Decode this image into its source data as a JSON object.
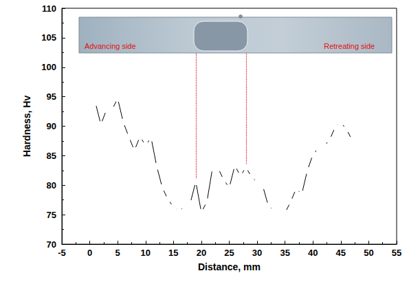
{
  "chart_data": {
    "type": "line",
    "xlabel": "Distance, mm",
    "ylabel": "Hardness, Hv",
    "x": [
      1,
      2,
      3,
      4,
      5,
      6,
      7,
      8,
      9,
      10,
      11,
      12,
      13,
      14,
      15,
      16,
      17,
      18,
      19,
      20,
      21,
      22,
      23,
      24,
      25,
      26,
      27,
      28,
      29,
      30,
      31,
      32,
      33,
      34,
      35,
      36,
      37,
      38,
      39,
      40,
      41,
      42,
      43,
      44,
      45,
      46,
      47,
      48
    ],
    "values": [
      94,
      90.3,
      92.8,
      92.8,
      94.7,
      90.7,
      88.2,
      85.9,
      88.2,
      86.8,
      88,
      83.2,
      79.6,
      77.6,
      76.3,
      75.6,
      76.4,
      76.9,
      80.6,
      75.4,
      77.2,
      82.9,
      82.9,
      80.9,
      79.6,
      83.3,
      81.6,
      83,
      81.4,
      80.5,
      79.9,
      76.5,
      75.7,
      75.4,
      75.3,
      77.2,
      79.4,
      78.5,
      82.5,
      85.2,
      86.3,
      86.6,
      87.7,
      89.9,
      90.6,
      89.5,
      87.7,
      87.4
    ],
    "color": "#000000",
    "marker": "open_circle",
    "xlim": [
      -5,
      55
    ],
    "xticks": [
      -5,
      0,
      5,
      10,
      15,
      20,
      25,
      30,
      35,
      40,
      45,
      50,
      55
    ],
    "ylim": [
      70,
      110
    ],
    "yticks": [
      70,
      75,
      80,
      85,
      90,
      95,
      100,
      105,
      110
    ],
    "grid": false,
    "annotations": [
      {
        "text": "Advancing side",
        "color": "#e01010"
      },
      {
        "text": "Retreating side",
        "color": "#e01010"
      }
    ],
    "reference_lines": [
      {
        "x": 19,
        "from": 80.6,
        "to": 102.4,
        "color": "#e01010",
        "line_style": "dotted"
      },
      {
        "x": 28,
        "from": 83,
        "to": 102.4,
        "color": "#e01010",
        "line_style": "dotted"
      }
    ]
  }
}
